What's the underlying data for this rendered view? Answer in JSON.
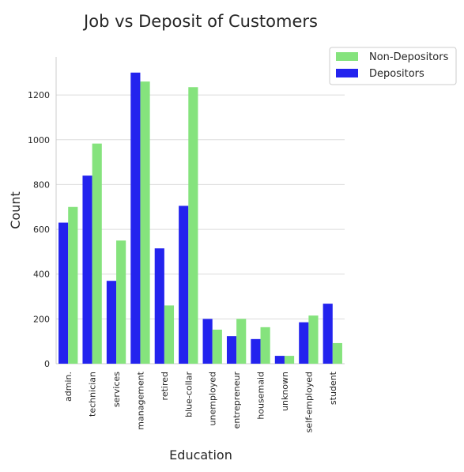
{
  "chart_data": {
    "type": "bar",
    "title": "Job vs Deposit of Customers",
    "xlabel": "Education",
    "ylabel": "Count",
    "categories": [
      "admin.",
      "technician",
      "services",
      "management",
      "retired",
      "blue-collar",
      "unemployed",
      "entrepreneur",
      "housemaid",
      "unknown",
      "self-employed",
      "student"
    ],
    "series": [
      {
        "name": "Depositors",
        "color": "#2323ee",
        "values": [
          630,
          840,
          370,
          1300,
          515,
          705,
          200,
          123,
          110,
          35,
          185,
          268
        ]
      },
      {
        "name": "Non-Depositors",
        "color": "#85e37d",
        "values": [
          700,
          983,
          550,
          1260,
          260,
          1235,
          152,
          200,
          163,
          35,
          215,
          92
        ]
      }
    ],
    "legend_order": [
      "Non-Depositors",
      "Depositors"
    ],
    "legend_position": "top-right",
    "ylim": [
      0,
      1370
    ],
    "yticks": [
      0,
      200,
      400,
      600,
      800,
      1000,
      1200
    ],
    "grid": true
  }
}
